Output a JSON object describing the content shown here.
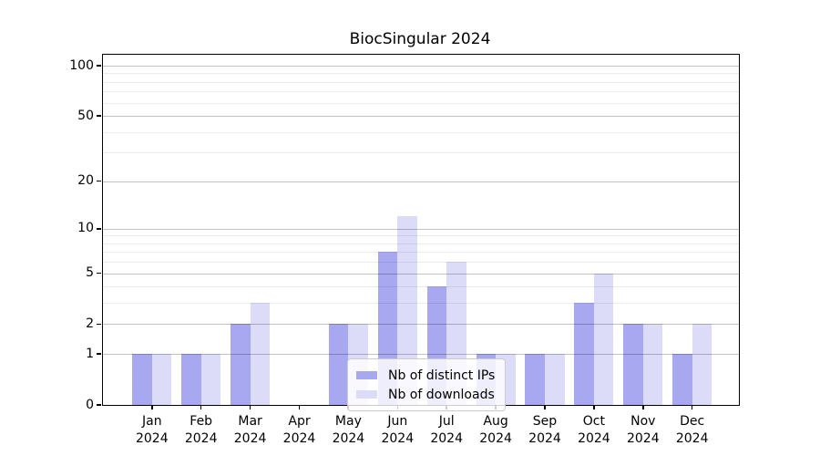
{
  "title": "BiocSingular 2024",
  "chart_data": {
    "type": "bar",
    "title": "BiocSingular 2024",
    "categories": [
      "Jan",
      "Feb",
      "Mar",
      "Apr",
      "May",
      "Jun",
      "Jul",
      "Aug",
      "Sep",
      "Oct",
      "Nov",
      "Dec"
    ],
    "category_year": "2024",
    "series": [
      {
        "name": "Nb of distinct IPs",
        "color": "#a8a8f0",
        "values": [
          1,
          1,
          2,
          0,
          2,
          7,
          4,
          1,
          1,
          3,
          2,
          1
        ]
      },
      {
        "name": "Nb of downloads",
        "color": "#dcdcf8",
        "values": [
          1,
          1,
          3,
          0,
          2,
          12,
          6,
          1,
          1,
          5,
          2,
          2
        ]
      }
    ],
    "y_scale": "log10(1+x)",
    "y_ticks": [
      0,
      1,
      2,
      5,
      10,
      20,
      50,
      100
    ],
    "y_minor_gridlines": [
      3,
      4,
      6,
      7,
      8,
      9,
      30,
      40,
      60,
      70,
      80,
      90
    ],
    "ylim": [
      0,
      116
    ],
    "grid": true,
    "gridlines_above_bars": true,
    "legend_position": "lower center",
    "xlabel": "",
    "ylabel": ""
  },
  "colors": {
    "background": "#ffffff",
    "spine": "#000000",
    "major_grid": "#c2c2c2",
    "minor_grid": "#e9e9e9",
    "legend_border": "#cccccc"
  }
}
